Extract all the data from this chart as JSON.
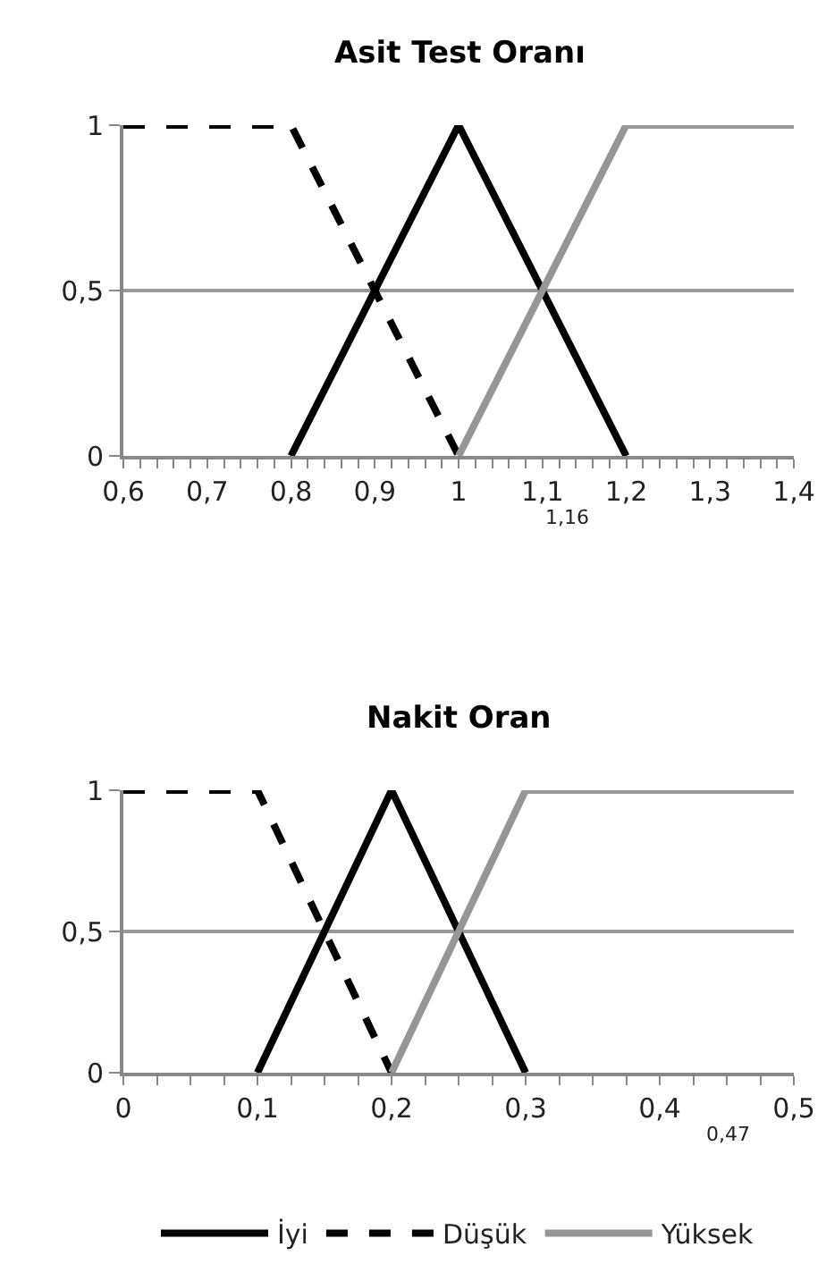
{
  "chart_data": [
    {
      "type": "line",
      "title": "Asit Test Oranı",
      "xlim": [
        0.6,
        1.4
      ],
      "ylim": [
        0,
        1
      ],
      "xticks": [
        {
          "value": 0.6,
          "label": "0,6"
        },
        {
          "value": 0.62,
          "label": null
        },
        {
          "value": 0.64,
          "label": null
        },
        {
          "value": 0.66,
          "label": null
        },
        {
          "value": 0.68,
          "label": null
        },
        {
          "value": 0.7,
          "label": "0,7"
        },
        {
          "value": 0.72,
          "label": null
        },
        {
          "value": 0.74,
          "label": null
        },
        {
          "value": 0.76,
          "label": null
        },
        {
          "value": 0.78,
          "label": null
        },
        {
          "value": 0.8,
          "label": "0,8"
        },
        {
          "value": 0.82,
          "label": null
        },
        {
          "value": 0.84,
          "label": null
        },
        {
          "value": 0.86,
          "label": null
        },
        {
          "value": 0.88,
          "label": null
        },
        {
          "value": 0.9,
          "label": "0,9"
        },
        {
          "value": 0.92,
          "label": null
        },
        {
          "value": 0.94,
          "label": null
        },
        {
          "value": 0.96,
          "label": null
        },
        {
          "value": 0.98,
          "label": null
        },
        1,
        {
          "value": 1.02,
          "label": null
        },
        {
          "value": 1.04,
          "label": null
        },
        {
          "value": 1.06,
          "label": null
        },
        {
          "value": 1.08,
          "label": null
        },
        {
          "value": 1.1,
          "label": "1,1"
        },
        {
          "value": 1.12,
          "label": null
        },
        {
          "value": 1.14,
          "label": null
        },
        {
          "value": 1.16,
          "label": null
        },
        {
          "value": 1.18,
          "label": null
        },
        {
          "value": 1.2,
          "label": "1,2"
        },
        {
          "value": 1.22,
          "label": null
        },
        {
          "value": 1.24,
          "label": null
        },
        {
          "value": 1.26,
          "label": null
        },
        {
          "value": 1.28,
          "label": null
        },
        {
          "value": 1.3,
          "label": "1,3"
        },
        {
          "value": 1.32,
          "label": null
        },
        {
          "value": 1.34,
          "label": null
        },
        {
          "value": 1.36,
          "label": null
        },
        {
          "value": 1.38,
          "label": null
        },
        {
          "value": 1.4,
          "label": "1,4"
        }
      ],
      "yticks": [
        0,
        {
          "value": 0.5,
          "label": "0,5"
        },
        1
      ],
      "grid": "y",
      "legend": "bottom",
      "marker": "none",
      "annotations": [
        "1,16"
      ],
      "series": [
        {
          "name": "İyi",
          "color": "#000000",
          "line_style": "solid",
          "x": [
            0.8,
            1.0,
            1.2
          ],
          "values": [
            0,
            1,
            0
          ]
        },
        {
          "name": "Düşük",
          "color": "#000000",
          "line_style": "dashed",
          "x": [
            0.6,
            0.8,
            1.0
          ],
          "values": [
            1,
            1,
            0
          ]
        },
        {
          "name": "Yüksek",
          "color": "#969696",
          "line_style": "solid",
          "x": [
            1.0,
            1.2,
            1.4
          ],
          "values": [
            0,
            1,
            1
          ]
        }
      ]
    },
    {
      "type": "line",
      "title": "Nakit Oran",
      "xlim": [
        0,
        0.5
      ],
      "ylim": [
        0,
        1
      ],
      "xticks": [
        0,
        {
          "value": 0.025,
          "label": null
        },
        {
          "value": 0.05,
          "label": null
        },
        {
          "value": 0.075,
          "label": null
        },
        {
          "value": 0.1,
          "label": "0,1"
        },
        {
          "value": 0.125,
          "label": null
        },
        {
          "value": 0.15,
          "label": null
        },
        {
          "value": 0.175,
          "label": null
        },
        {
          "value": 0.2,
          "label": "0,2"
        },
        {
          "value": 0.225,
          "label": null
        },
        {
          "value": 0.25,
          "label": null
        },
        {
          "value": 0.275,
          "label": null
        },
        {
          "value": 0.3,
          "label": "0,3"
        },
        {
          "value": 0.325,
          "label": null
        },
        {
          "value": 0.35,
          "label": null
        },
        {
          "value": 0.375,
          "label": null
        },
        {
          "value": 0.4,
          "label": "0,4"
        },
        {
          "value": 0.425,
          "label": null
        },
        {
          "value": 0.45,
          "label": null
        },
        {
          "value": 0.475,
          "label": null
        },
        {
          "value": 0.5,
          "label": "0,5"
        }
      ],
      "yticks": [
        0,
        {
          "value": 0.5,
          "label": "0,5"
        },
        1
      ],
      "grid": "y",
      "marker": "none",
      "annotations": [
        "0,47"
      ],
      "series": [
        {
          "color": "#000000",
          "line_style": "solid",
          "x": [
            0.1,
            0.2,
            0.3
          ],
          "values": [
            0,
            1,
            0
          ]
        },
        {
          "color": "#000000",
          "line_style": "dashed",
          "x": [
            0,
            0.1,
            0.2
          ],
          "values": [
            1,
            1,
            0
          ]
        },
        {
          "color": "#969696",
          "line_style": "solid",
          "x": [
            0.2,
            0.3,
            0.5
          ],
          "values": [
            0,
            1,
            1
          ]
        }
      ]
    }
  ]
}
